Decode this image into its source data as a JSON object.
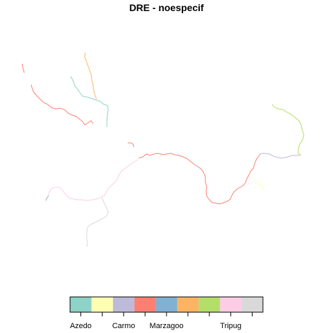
{
  "title": "DRE - noespecif",
  "legend": {
    "colors": [
      "#8dd3c7",
      "#ffffb3",
      "#bebada",
      "#fb8072",
      "#80b1d3",
      "#fdb462",
      "#b3de69",
      "#fccde5",
      "#d9d9d9"
    ],
    "labels": [
      "Azedo",
      "",
      "Carmo",
      "",
      "Marzagoo",
      "",
      "",
      "Tripug",
      ""
    ]
  },
  "rivers": [
    {
      "color_index": 3,
      "name": ""
    },
    {
      "color_index": 5,
      "name": ""
    },
    {
      "color_index": 0,
      "name": ""
    },
    {
      "color_index": 6,
      "name": ""
    },
    {
      "color_index": 2,
      "name": ""
    },
    {
      "color_index": 1,
      "name": ""
    },
    {
      "color_index": 7,
      "name": ""
    },
    {
      "color_index": 8,
      "name": ""
    },
    {
      "color_index": 4,
      "name": ""
    }
  ]
}
